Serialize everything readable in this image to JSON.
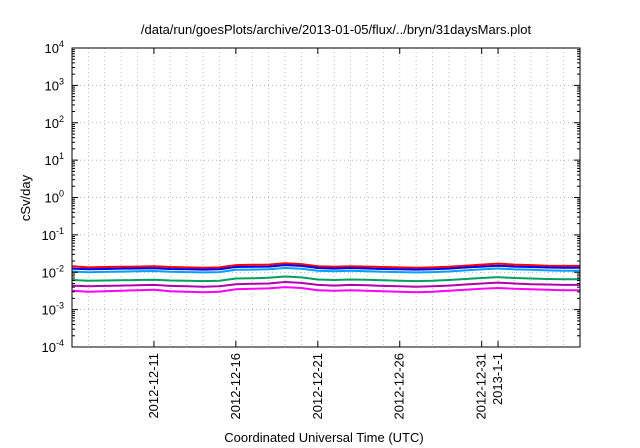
{
  "chart_data": {
    "type": "line",
    "title": "/data/run/goesPlots/archive/2013-01-05/flux/../bryn/31daysMars.plot",
    "xlabel": "Coordinated Universal Time (UTC)",
    "ylabel": "cSv/day",
    "yscale": "log",
    "ylim": [
      0.0001,
      10000
    ],
    "xlim": [
      "2012-12-06",
      "2013-01-06"
    ],
    "grid": true,
    "y_ticks": [
      {
        "base": "10",
        "exp": "4",
        "value": 10000
      },
      {
        "base": "10",
        "exp": "3",
        "value": 1000
      },
      {
        "base": "10",
        "exp": "2",
        "value": 100
      },
      {
        "base": "10",
        "exp": "1",
        "value": 10
      },
      {
        "base": "10",
        "exp": "0",
        "value": 1
      },
      {
        "base": "10",
        "exp": "-1",
        "value": 0.1
      },
      {
        "base": "10",
        "exp": "-2",
        "value": 0.01
      },
      {
        "base": "10",
        "exp": "-3",
        "value": 0.001
      },
      {
        "base": "10",
        "exp": "-4",
        "value": 0.0001
      }
    ],
    "x_ticks": [
      {
        "label": "2012-12-11",
        "x": "2012-12-11"
      },
      {
        "label": "2012-12-16",
        "x": "2012-12-16"
      },
      {
        "label": "2012-12-21",
        "x": "2012-12-21"
      },
      {
        "label": "2012-12-26",
        "x": "2012-12-26"
      },
      {
        "label": "2012-12-31",
        "x": "2012-12-31"
      },
      {
        "label": "2013-1-1",
        "x": "2013-01-01"
      }
    ],
    "x": [
      "2012-12-06",
      "2012-12-07",
      "2012-12-08",
      "2012-12-09",
      "2012-12-10",
      "2012-12-11",
      "2012-12-12",
      "2012-12-13",
      "2012-12-14",
      "2012-12-15",
      "2012-12-16",
      "2012-12-17",
      "2012-12-18",
      "2012-12-19",
      "2012-12-20",
      "2012-12-21",
      "2012-12-22",
      "2012-12-23",
      "2012-12-24",
      "2012-12-25",
      "2012-12-26",
      "2012-12-27",
      "2012-12-28",
      "2012-12-29",
      "2012-12-30",
      "2012-12-31",
      "2013-01-01",
      "2013-01-02",
      "2013-01-03",
      "2013-01-04",
      "2013-01-05",
      "2013-01-06"
    ],
    "series": [
      {
        "color": "#ff0000",
        "values": [
          0.0145,
          0.0135,
          0.0138,
          0.014,
          0.0142,
          0.0145,
          0.0138,
          0.0135,
          0.0132,
          0.0135,
          0.0155,
          0.0158,
          0.016,
          0.0175,
          0.0165,
          0.0145,
          0.014,
          0.0145,
          0.0142,
          0.0138,
          0.0135,
          0.0132,
          0.0135,
          0.014,
          0.015,
          0.016,
          0.017,
          0.016,
          0.0155,
          0.015,
          0.0148,
          0.0148
        ]
      },
      {
        "color": "#0000ff",
        "values": [
          0.0125,
          0.012,
          0.0122,
          0.0125,
          0.0126,
          0.0128,
          0.0122,
          0.012,
          0.0118,
          0.012,
          0.0138,
          0.014,
          0.0142,
          0.0155,
          0.0148,
          0.013,
          0.0125,
          0.013,
          0.0126,
          0.0122,
          0.012,
          0.0118,
          0.012,
          0.0125,
          0.0134,
          0.0142,
          0.015,
          0.0142,
          0.0138,
          0.0134,
          0.0132,
          0.0132
        ]
      },
      {
        "color": "#00a0ff",
        "values": [
          0.0105,
          0.01,
          0.0102,
          0.0104,
          0.0106,
          0.0108,
          0.0103,
          0.0101,
          0.0099,
          0.0101,
          0.0116,
          0.0118,
          0.012,
          0.013,
          0.0124,
          0.011,
          0.0106,
          0.011,
          0.0107,
          0.0103,
          0.0101,
          0.0099,
          0.0101,
          0.0105,
          0.0112,
          0.0119,
          0.0126,
          0.0119,
          0.0116,
          0.0112,
          0.011,
          0.011
        ]
      },
      {
        "color": "#00a060",
        "values": [
          0.0062,
          0.0059,
          0.006,
          0.0061,
          0.0062,
          0.0063,
          0.006,
          0.0059,
          0.0058,
          0.0059,
          0.0068,
          0.0069,
          0.0071,
          0.0077,
          0.0073,
          0.0064,
          0.0062,
          0.0064,
          0.0063,
          0.0061,
          0.0059,
          0.0058,
          0.0059,
          0.0062,
          0.0066,
          0.007,
          0.0074,
          0.007,
          0.0068,
          0.0066,
          0.0065,
          0.0065
        ]
      },
      {
        "color": "#b000b0",
        "values": [
          0.0044,
          0.0042,
          0.0043,
          0.0044,
          0.0045,
          0.0046,
          0.0043,
          0.0042,
          0.0041,
          0.0042,
          0.0048,
          0.0049,
          0.005,
          0.0055,
          0.0052,
          0.0046,
          0.0044,
          0.0046,
          0.0045,
          0.0043,
          0.0042,
          0.0041,
          0.0042,
          0.0044,
          0.0047,
          0.005,
          0.0053,
          0.005,
          0.0048,
          0.0047,
          0.0046,
          0.0046
        ]
      },
      {
        "color": "#ff00ff",
        "values": [
          0.0032,
          0.003,
          0.0031,
          0.0032,
          0.0033,
          0.0034,
          0.0031,
          0.003,
          0.0029,
          0.003,
          0.0035,
          0.0036,
          0.0037,
          0.004,
          0.0038,
          0.0033,
          0.0032,
          0.0033,
          0.0032,
          0.0031,
          0.003,
          0.0029,
          0.003,
          0.0032,
          0.0034,
          0.0036,
          0.0038,
          0.0036,
          0.0035,
          0.0034,
          0.0033,
          0.0033
        ]
      }
    ]
  }
}
